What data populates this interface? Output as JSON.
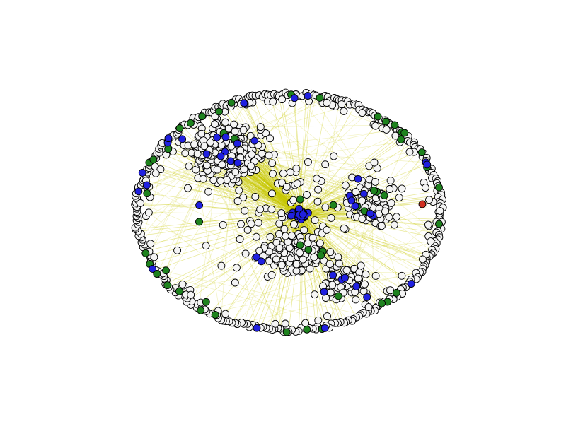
{
  "graph": {
    "type": "network",
    "layout": "spring",
    "edge_color": "#c8c800",
    "node_outline_color": "#000000",
    "node_categories": [
      {
        "key": "white",
        "color": "#f4f4f4"
      },
      {
        "key": "blue",
        "color": "#2020e0"
      },
      {
        "key": "green",
        "color": "#1e821e"
      },
      {
        "key": "red",
        "color": "#d03020"
      }
    ]
  }
}
